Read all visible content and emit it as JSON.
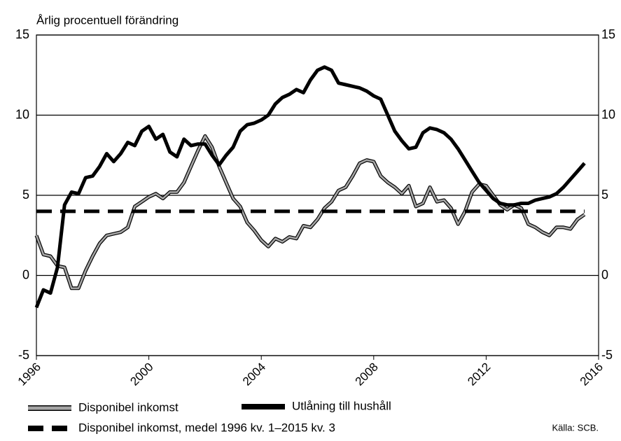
{
  "chart_data": {
    "type": "line",
    "y_label": "Årlig procentuell förändring",
    "x": [
      1996,
      1996.25,
      1996.5,
      1996.75,
      1997,
      1997.25,
      1997.5,
      1997.75,
      1998,
      1998.25,
      1998.5,
      1998.75,
      1999,
      1999.25,
      1999.5,
      1999.75,
      2000,
      2000.25,
      2000.5,
      2000.75,
      2001,
      2001.25,
      2001.5,
      2001.75,
      2002,
      2002.25,
      2002.5,
      2002.75,
      2003,
      2003.25,
      2003.5,
      2003.75,
      2004,
      2004.25,
      2004.5,
      2004.75,
      2005,
      2005.25,
      2005.5,
      2005.75,
      2006,
      2006.25,
      2006.5,
      2006.75,
      2007,
      2007.25,
      2007.5,
      2007.75,
      2008,
      2008.25,
      2008.5,
      2008.75,
      2009,
      2009.25,
      2009.5,
      2009.75,
      2010,
      2010.25,
      2010.5,
      2010.75,
      2011,
      2011.25,
      2011.5,
      2011.75,
      2012,
      2012.25,
      2012.5,
      2012.75,
      2013,
      2013.25,
      2013.5,
      2013.75,
      2014,
      2014.25,
      2014.5,
      2014.75,
      2015,
      2015.25,
      2015.5
    ],
    "series": [
      {
        "name": "Disponibel inkomst",
        "color": "#a6a6a6",
        "style": "double",
        "values": [
          2.5,
          1.3,
          1.2,
          0.6,
          0.5,
          -0.8,
          -0.8,
          0.3,
          1.2,
          2.0,
          2.5,
          2.6,
          2.7,
          3.0,
          4.3,
          4.6,
          4.9,
          5.1,
          4.8,
          5.2,
          5.2,
          5.8,
          6.8,
          7.8,
          8.7,
          8.0,
          6.8,
          5.8,
          4.8,
          4.3,
          3.3,
          2.8,
          2.2,
          1.8,
          2.3,
          2.1,
          2.4,
          2.3,
          3.1,
          3.0,
          3.5,
          4.2,
          4.6,
          5.3,
          5.5,
          6.2,
          7.0,
          7.2,
          7.1,
          6.2,
          5.8,
          5.5,
          5.1,
          5.6,
          4.3,
          4.5,
          5.5,
          4.6,
          4.7,
          4.2,
          3.2,
          4.0,
          5.2,
          5.7,
          5.6,
          5.0,
          4.4,
          4.1,
          4.4,
          4.2,
          3.2,
          3.0,
          2.7,
          2.5,
          3.0,
          3.0,
          2.9,
          3.5,
          3.8
        ]
      },
      {
        "name": "Utlåning till hushåll",
        "color": "#000000",
        "style": "solid",
        "values": [
          -2.0,
          -0.9,
          -1.1,
          0.5,
          4.4,
          5.2,
          5.1,
          6.1,
          6.2,
          6.8,
          7.6,
          7.1,
          7.6,
          8.3,
          8.1,
          9.0,
          9.3,
          8.5,
          8.8,
          7.7,
          7.4,
          8.5,
          8.1,
          8.2,
          8.2,
          7.5,
          6.9,
          7.5,
          8.0,
          9.0,
          9.4,
          9.5,
          9.7,
          10.0,
          10.7,
          11.1,
          11.3,
          11.6,
          11.4,
          12.2,
          12.8,
          13.0,
          12.8,
          12.0,
          11.9,
          11.8,
          11.7,
          11.5,
          11.2,
          11.0,
          10.0,
          9.0,
          8.4,
          7.9,
          8.0,
          8.9,
          9.2,
          9.1,
          8.9,
          8.5,
          7.9,
          7.2,
          6.5,
          5.8,
          5.3,
          4.8,
          4.5,
          4.4,
          4.4,
          4.5,
          4.5,
          4.7,
          4.8,
          4.9,
          5.1,
          5.5,
          6.0,
          6.5,
          7.0
        ]
      },
      {
        "name": "Disponibel inkomst, medel 1996 kv. 1–2015 kv. 3",
        "color": "#000000",
        "style": "dashed",
        "x": [
          1996,
          2015.5
        ],
        "values": [
          4.0,
          4.0
        ]
      }
    ],
    "xlim": [
      1996,
      2016
    ],
    "xticks": [
      1996,
      2000,
      2004,
      2008,
      2012,
      2016
    ],
    "ylim": [
      -5,
      15
    ],
    "yticks": [
      -5,
      0,
      5,
      10,
      15
    ],
    "y2lim": [
      -5,
      15
    ],
    "y2ticks": [
      -5,
      0,
      5,
      10,
      15
    ],
    "grid": true,
    "source": "Källa: SCB."
  }
}
